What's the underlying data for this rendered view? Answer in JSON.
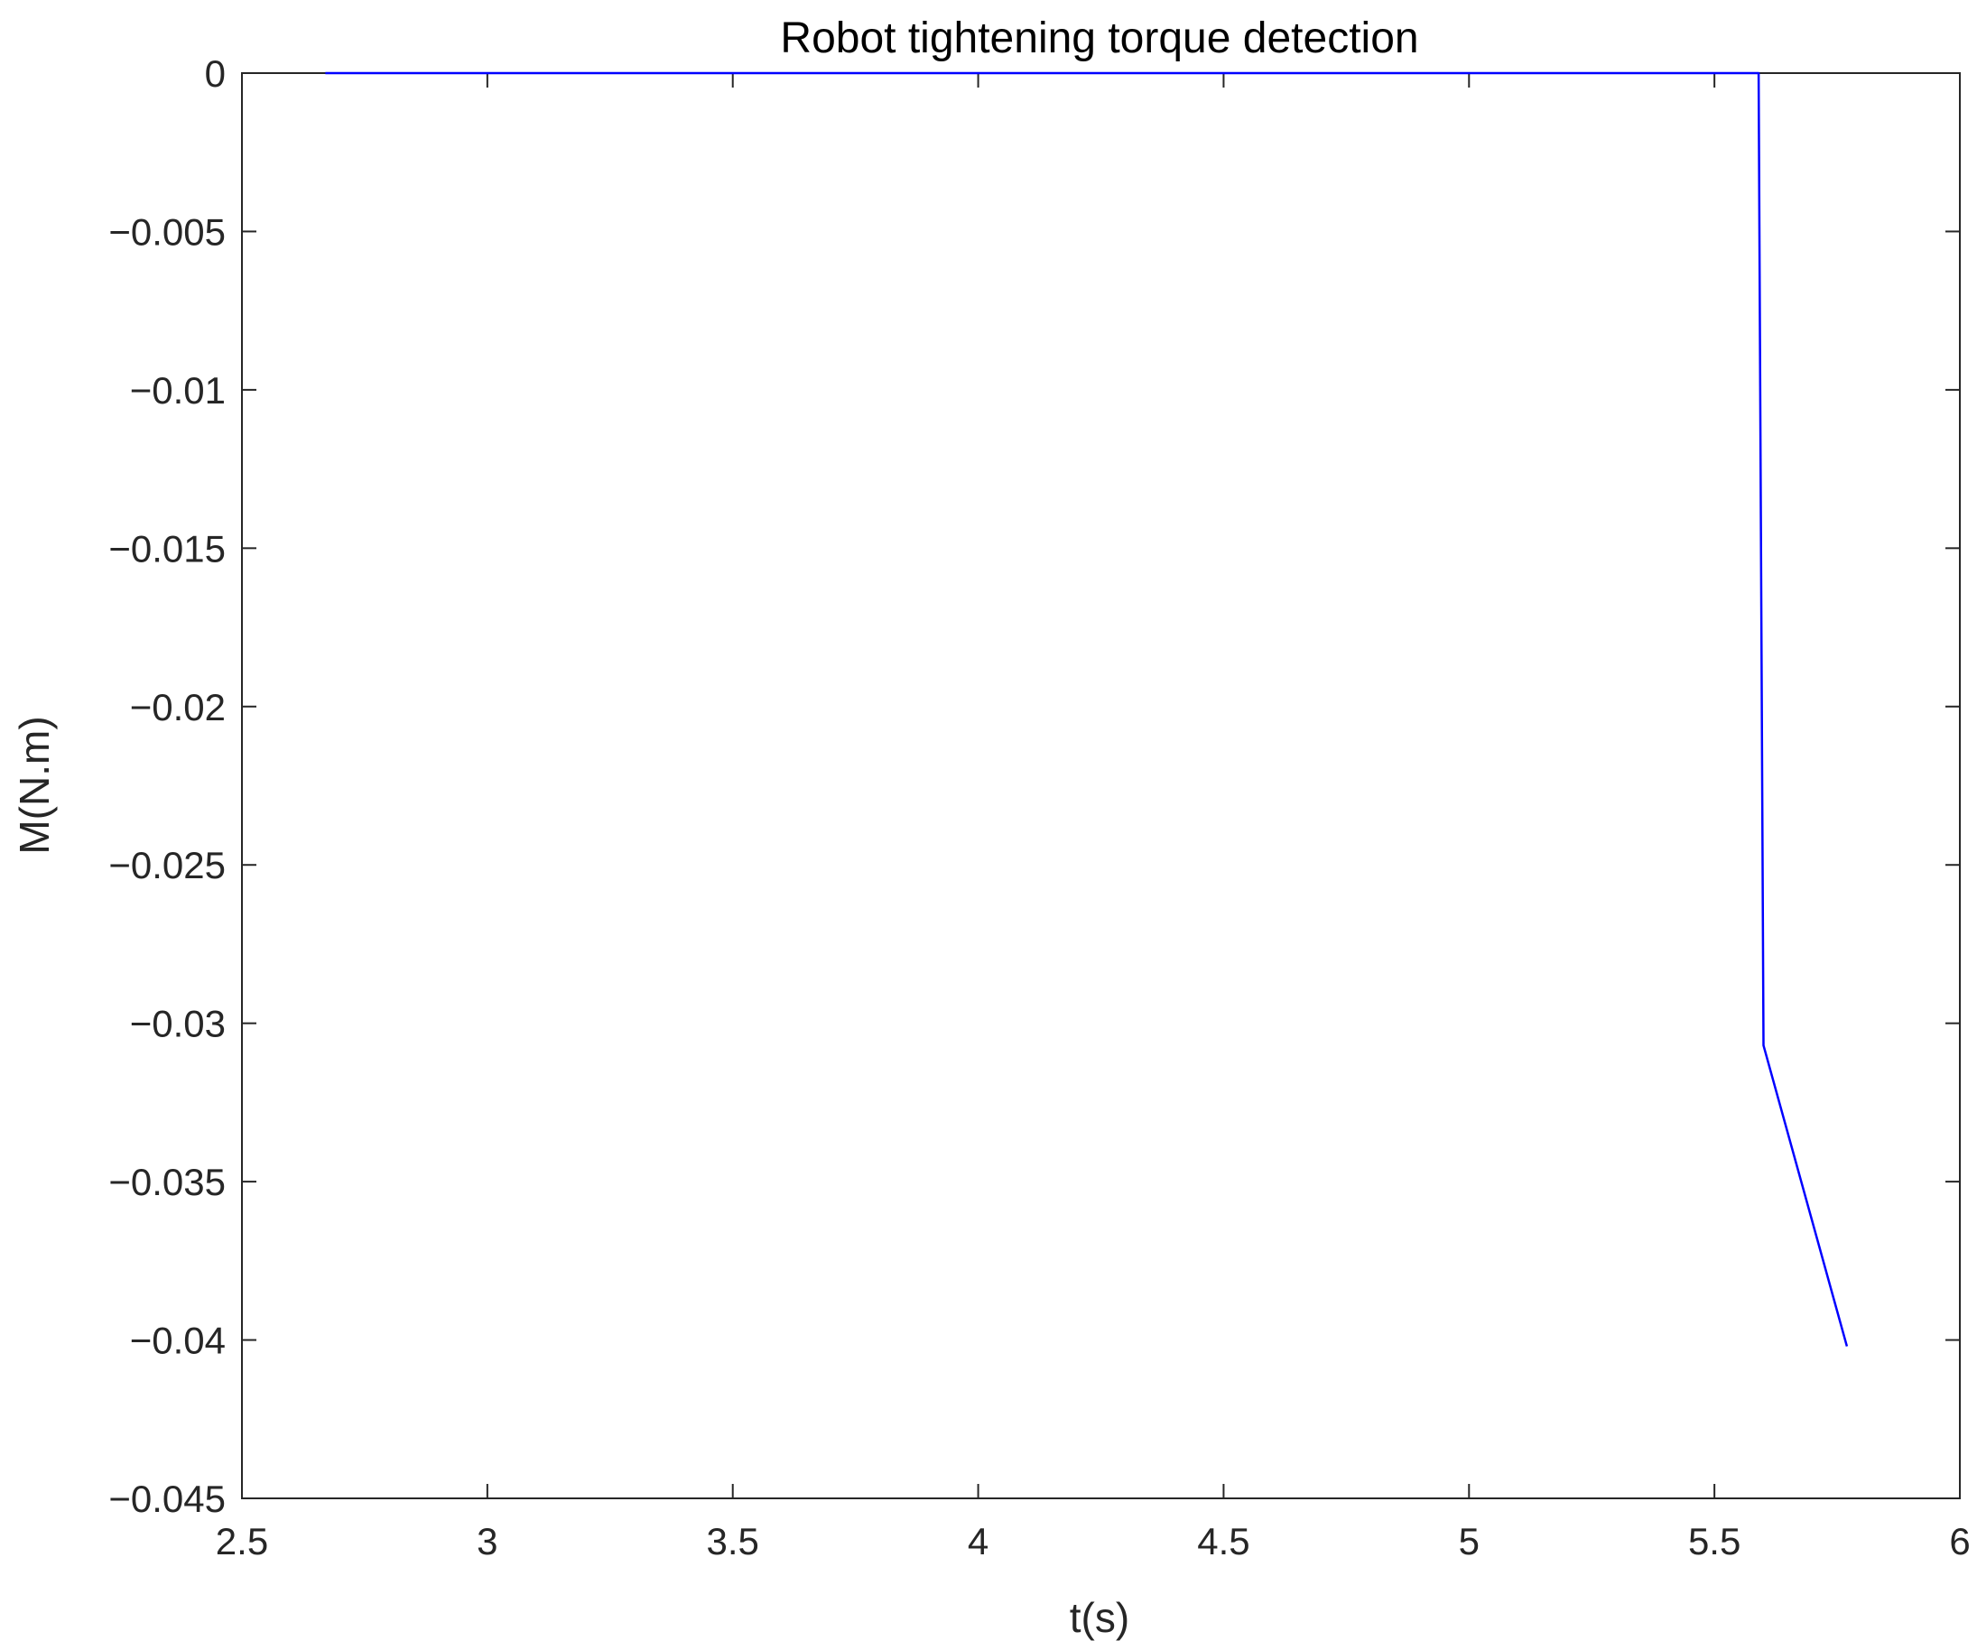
{
  "chart_data": {
    "type": "line",
    "title": "Robot tightening torque detection",
    "xlabel": "t(s)",
    "ylabel": "M(N.m)",
    "xlim": [
      2.5,
      6
    ],
    "ylim": [
      -0.045,
      0
    ],
    "x_ticks": [
      2.5,
      3,
      3.5,
      4,
      4.5,
      5,
      5.5,
      6
    ],
    "x_tick_labels": [
      "2.5",
      "3",
      "3.5",
      "4",
      "4.5",
      "5",
      "5.5",
      "6"
    ],
    "y_ticks": [
      0,
      -0.005,
      -0.01,
      -0.015,
      -0.02,
      -0.025,
      -0.03,
      -0.035,
      -0.04,
      -0.045
    ],
    "y_tick_labels": [
      "0",
      "−0.005",
      "−0.01",
      "−0.015",
      "−0.02",
      "−0.025",
      "−0.03",
      "−0.035",
      "−0.04",
      "−0.045"
    ],
    "grid": false,
    "series": [
      {
        "color": "#0000ff",
        "x": [
          2.67,
          5.59,
          5.6,
          5.77
        ],
        "y": [
          0,
          0,
          -0.0307,
          -0.0402
        ]
      }
    ]
  }
}
